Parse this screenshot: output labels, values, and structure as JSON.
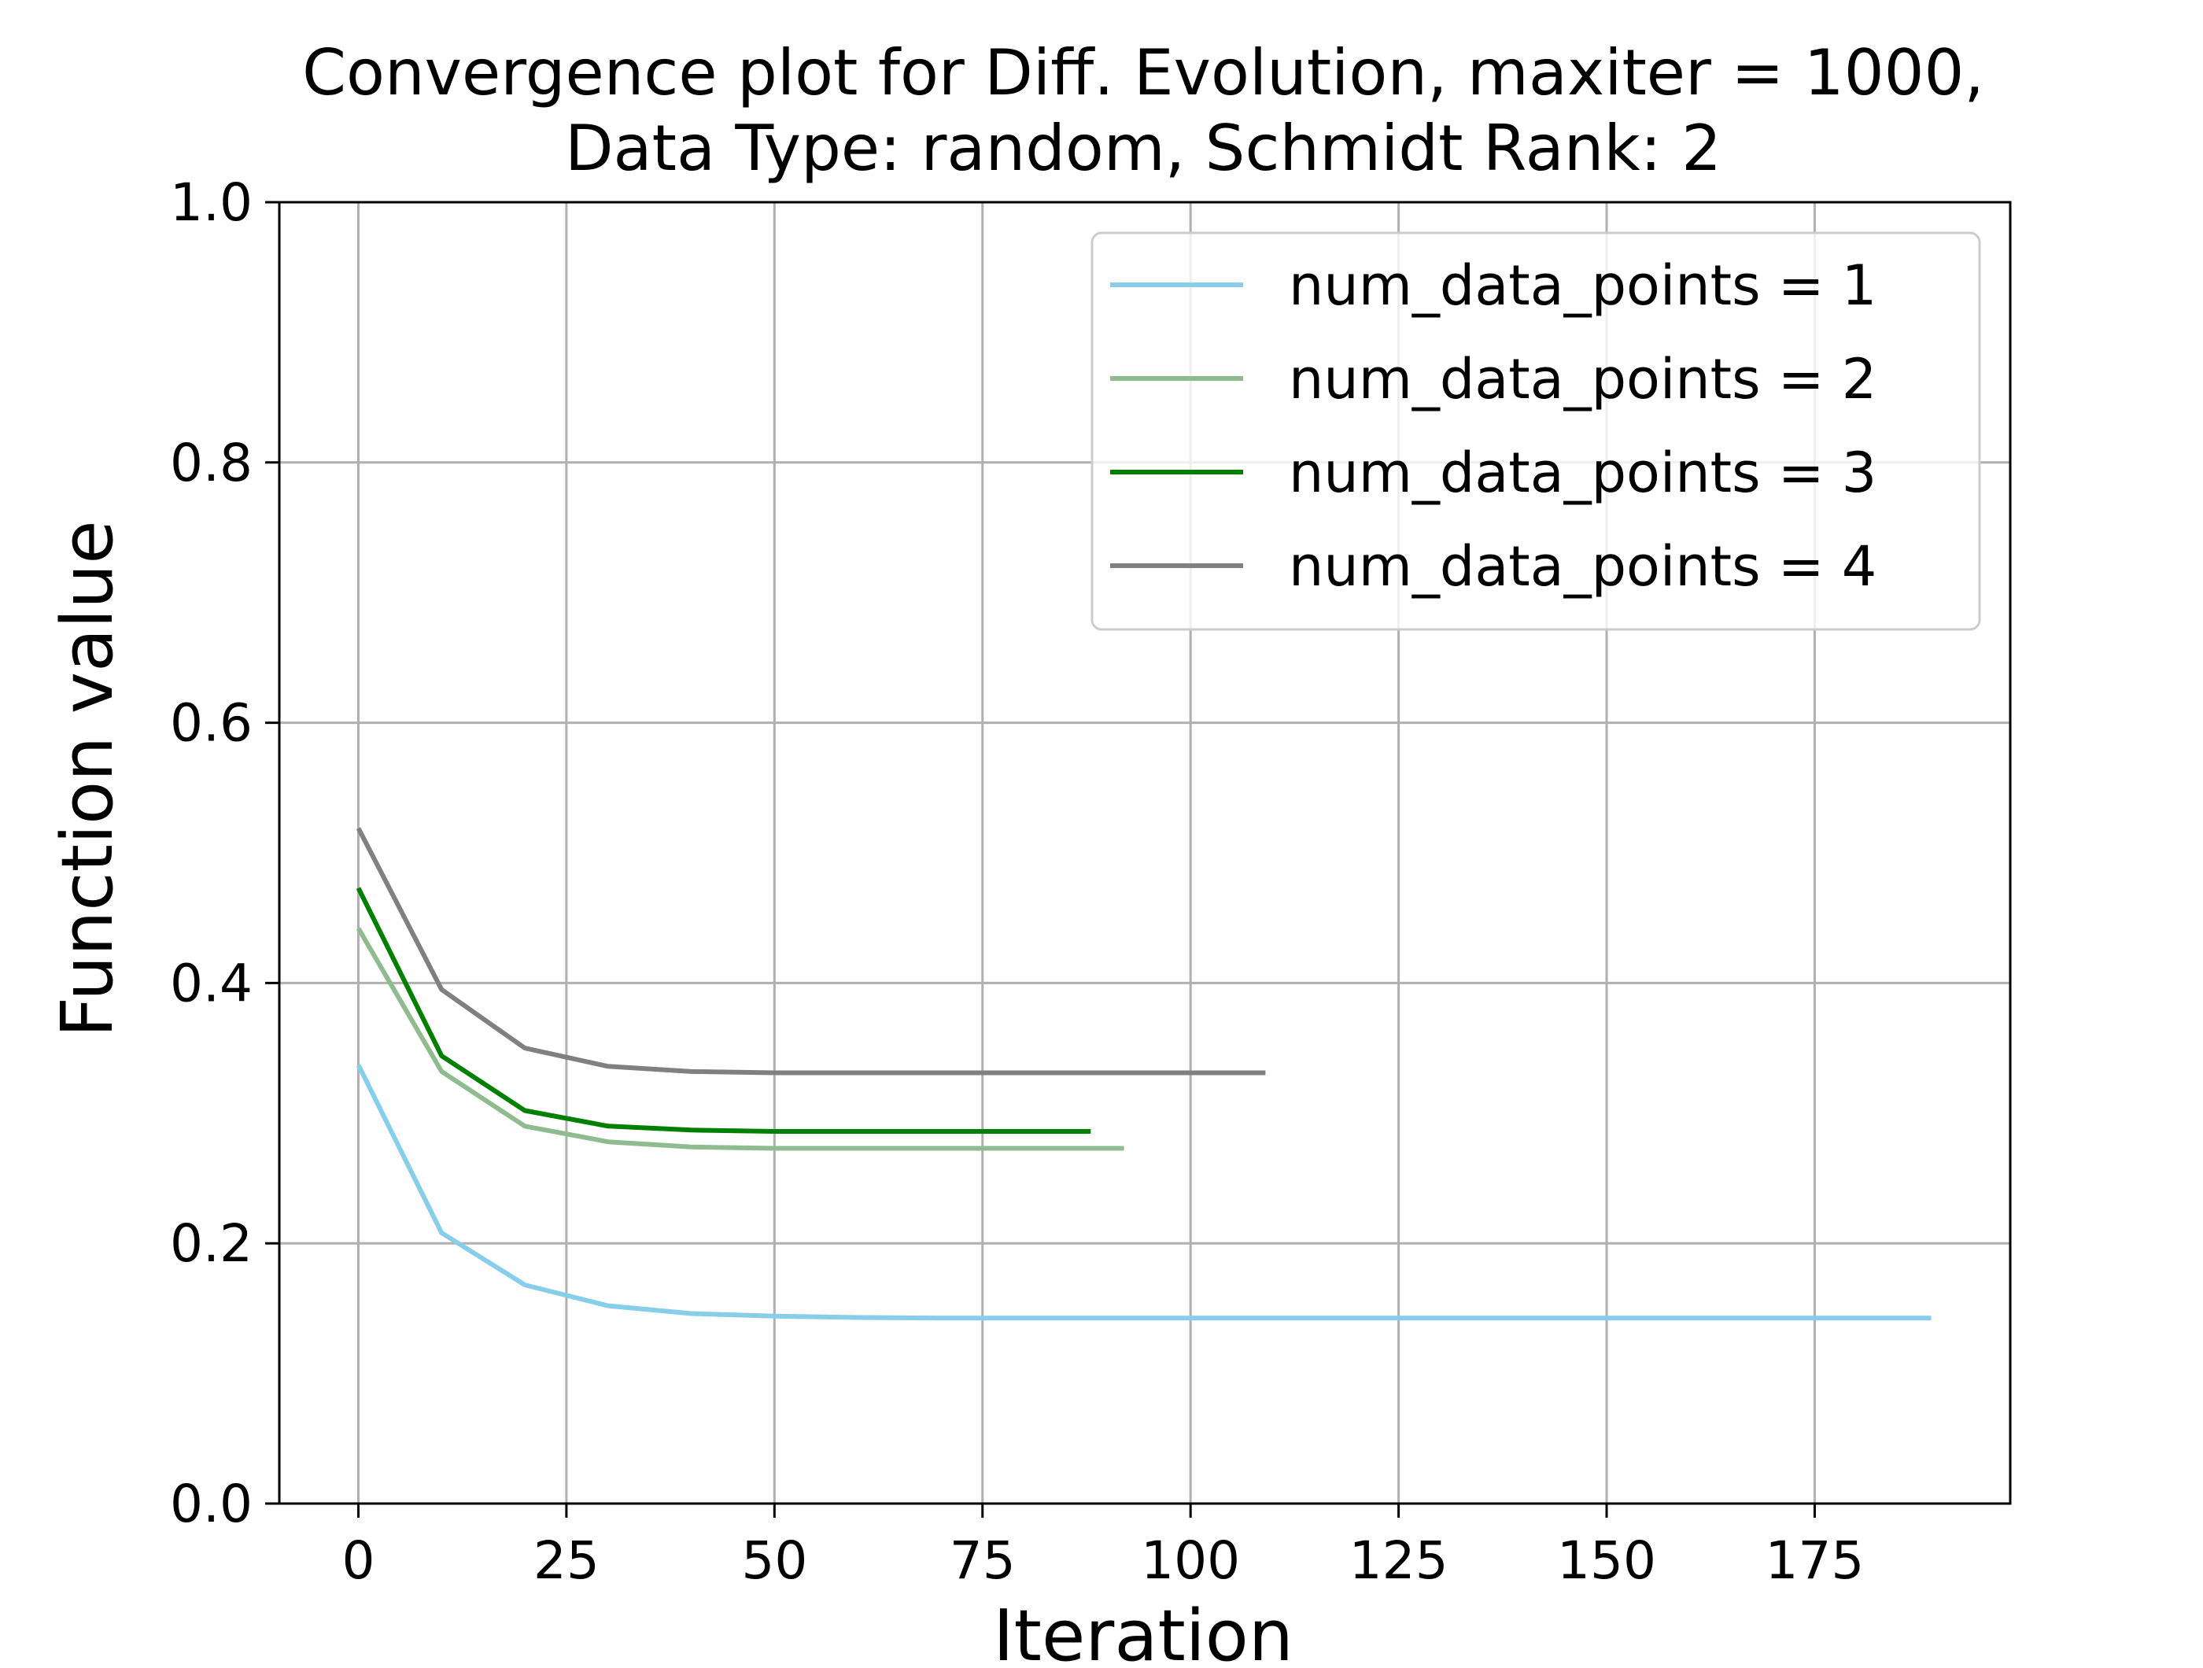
{
  "chart_data": {
    "type": "line",
    "title_lines": [
      "Convergence plot for Diff. Evolution, maxiter = 1000,",
      "Data Type: random, Schmidt Rank: 2"
    ],
    "xlabel": "Iteration",
    "ylabel": "Function value",
    "xlim": [
      -9.5,
      198.5
    ],
    "ylim": [
      0.0,
      1.0
    ],
    "xticks": [
      0,
      25,
      50,
      75,
      100,
      125,
      150,
      175
    ],
    "xtick_labels": [
      "0",
      "25",
      "50",
      "75",
      "100",
      "125",
      "150",
      "175"
    ],
    "yticks": [
      0.0,
      0.2,
      0.4,
      0.6,
      0.8,
      1.0
    ],
    "ytick_labels": [
      "0.0",
      "0.2",
      "0.4",
      "0.6",
      "0.8",
      "1.0"
    ],
    "grid": true,
    "legend_position": "top-right",
    "series": [
      {
        "name": "num_data_points = 1",
        "color": "#87ceeb",
        "x": [
          0,
          10,
          20,
          30,
          40,
          50,
          60,
          70,
          80,
          90,
          100,
          110,
          120,
          130,
          140,
          150,
          160,
          170,
          180,
          189
        ],
        "y": [
          0.337,
          0.208,
          0.168,
          0.152,
          0.146,
          0.144,
          0.143,
          0.1425,
          0.1425,
          0.1425,
          0.1425,
          0.1425,
          0.1425,
          0.1425,
          0.1425,
          0.1425,
          0.1425,
          0.1425,
          0.1425,
          0.1425
        ]
      },
      {
        "name": "num_data_points = 2",
        "color": "#8fbc8f",
        "x": [
          0,
          10,
          20,
          30,
          40,
          50,
          60,
          70,
          80,
          92
        ],
        "y": [
          0.442,
          0.332,
          0.29,
          0.278,
          0.274,
          0.273,
          0.273,
          0.273,
          0.273,
          0.273
        ]
      },
      {
        "name": "num_data_points = 3",
        "color": "#008000",
        "x": [
          0,
          10,
          20,
          30,
          40,
          50,
          60,
          70,
          80,
          88
        ],
        "y": [
          0.473,
          0.344,
          0.302,
          0.29,
          0.287,
          0.286,
          0.286,
          0.286,
          0.286,
          0.286
        ]
      },
      {
        "name": "num_data_points = 4",
        "color": "#808080",
        "x": [
          0,
          10,
          20,
          30,
          40,
          50,
          60,
          70,
          80,
          90,
          100,
          109
        ],
        "y": [
          0.519,
          0.395,
          0.35,
          0.336,
          0.332,
          0.331,
          0.331,
          0.331,
          0.331,
          0.331,
          0.331,
          0.331
        ]
      }
    ]
  }
}
